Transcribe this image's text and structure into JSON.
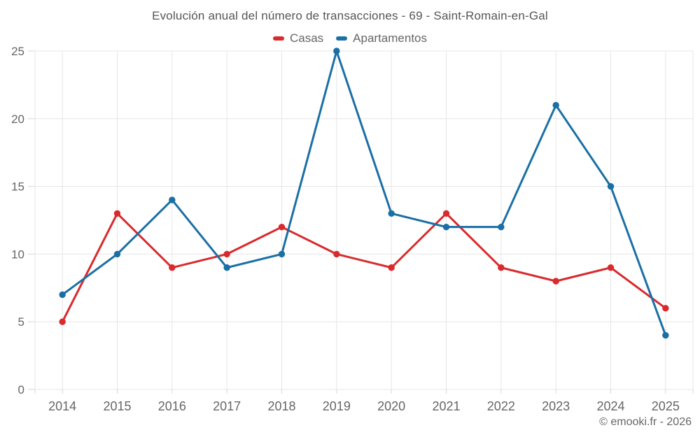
{
  "chart_data": {
    "type": "line",
    "title": "Evolución anual del número de transacciones - 69 - Saint-Romain-en-Gal",
    "categories": [
      "2014",
      "2015",
      "2016",
      "2017",
      "2018",
      "2019",
      "2020",
      "2021",
      "2022",
      "2023",
      "2024",
      "2025"
    ],
    "series": [
      {
        "name": "Casas",
        "color": "#d92a2d",
        "values": [
          5,
          13,
          9,
          10,
          12,
          10,
          9,
          13,
          9,
          8,
          9,
          6
        ]
      },
      {
        "name": "Apartamentos",
        "color": "#1a6fa5",
        "values": [
          7,
          10,
          14,
          9,
          10,
          25,
          13,
          12,
          12,
          21,
          15,
          4
        ]
      }
    ],
    "xlabel": "",
    "ylabel": "",
    "ylim": [
      0,
      25
    ],
    "yticks": [
      0,
      5,
      10,
      15,
      20,
      25
    ],
    "grid": true,
    "legend_position": "top"
  },
  "footer": {
    "credit": "© emooki.fr - 2026"
  },
  "colors": {
    "grid": "#e6e6e6",
    "tick": "#d6d6d6",
    "axis_text": "#666666",
    "title_text": "#555555"
  }
}
